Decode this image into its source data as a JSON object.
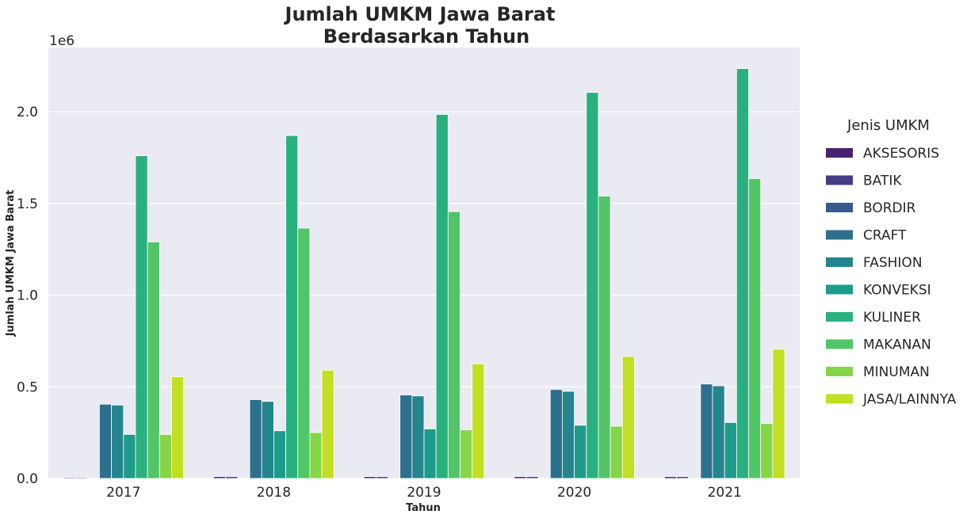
{
  "chart_data": {
    "type": "bar",
    "title_line1": "Jumlah UMKM Jawa Barat",
    "title_line2": "Berdasarkan Tahun",
    "xlabel": "Tahun",
    "ylabel": "Jumlah UMKM Jawa Barat",
    "y_offset_label": "1e6",
    "ylim": [
      0,
      2.35
    ],
    "yticks": [
      "0.0",
      "0.5",
      "1.0",
      "1.5",
      "2.0"
    ],
    "ytick_values": [
      0,
      0.5,
      1.0,
      1.5,
      2.0
    ],
    "grid": true,
    "legend_title": "Jenis UMKM",
    "legend_position": "right",
    "categories": [
      "2017",
      "2018",
      "2019",
      "2020",
      "2021"
    ],
    "series": [
      {
        "name": "AKSESORIS",
        "color": "#482173",
        "values": [
          0.005,
          0.01,
          0.01,
          0.01,
          0.01
        ]
      },
      {
        "name": "BATIK",
        "color": "#433e85",
        "values": [
          0.005,
          0.01,
          0.01,
          0.01,
          0.01
        ]
      },
      {
        "name": "BORDIR",
        "color": "#38598c",
        "values": [
          0,
          0,
          0,
          0,
          0
        ]
      },
      {
        "name": "CRAFT",
        "color": "#2d708e",
        "values": [
          0.405,
          0.43,
          0.455,
          0.485,
          0.515
        ]
      },
      {
        "name": "FASHION",
        "color": "#25858e",
        "values": [
          0.4,
          0.42,
          0.45,
          0.475,
          0.505
        ]
      },
      {
        "name": "KONVEKSI",
        "color": "#1e9b8a",
        "values": [
          0.24,
          0.26,
          0.27,
          0.29,
          0.305
        ]
      },
      {
        "name": "KULINER",
        "color": "#2ab07f",
        "values": [
          1.76,
          1.87,
          1.985,
          2.105,
          2.235
        ]
      },
      {
        "name": "MAKANAN",
        "color": "#52c569",
        "values": [
          1.29,
          1.365,
          1.455,
          1.54,
          1.635
        ]
      },
      {
        "name": "MINUMAN",
        "color": "#86d549",
        "values": [
          0.24,
          0.25,
          0.265,
          0.285,
          0.3
        ]
      },
      {
        "name": "JASA/LAINNYA",
        "color": "#c2df23",
        "values": [
          0.555,
          0.59,
          0.625,
          0.665,
          0.705
        ]
      }
    ]
  }
}
